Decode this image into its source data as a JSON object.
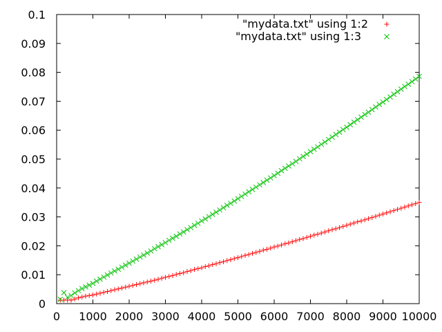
{
  "chart_data": {
    "type": "scatter",
    "title": "",
    "xlabel": "",
    "ylabel": "",
    "xlim": [
      0,
      10000
    ],
    "ylim": [
      0,
      0.1
    ],
    "x_ticks": [
      0,
      1000,
      2000,
      3000,
      4000,
      5000,
      6000,
      7000,
      8000,
      9000,
      10000
    ],
    "x_tick_labels": [
      "0",
      "1000",
      "2000",
      "3000",
      "4000",
      "5000",
      "6000",
      "7000",
      "8000",
      "9000",
      "10000"
    ],
    "y_ticks": [
      0,
      0.01,
      0.02,
      0.03,
      0.04,
      0.05,
      0.06,
      0.07,
      0.08,
      0.09,
      0.1
    ],
    "y_tick_labels": [
      "0",
      "0.01",
      "0.02",
      "0.03",
      "0.04",
      "0.05",
      "0.06",
      "0.07",
      "0.08",
      "0.09",
      "0.1"
    ],
    "grid": false,
    "legend_position": "top-right",
    "x": [
      100,
      200,
      300,
      400,
      500,
      600,
      700,
      800,
      900,
      1000,
      1100,
      1200,
      1300,
      1400,
      1500,
      1600,
      1700,
      1800,
      1900,
      2000,
      2100,
      2200,
      2300,
      2400,
      2500,
      2600,
      2700,
      2800,
      2900,
      3000,
      3100,
      3200,
      3300,
      3400,
      3500,
      3600,
      3700,
      3800,
      3900,
      4000,
      4100,
      4200,
      4300,
      4400,
      4500,
      4600,
      4700,
      4800,
      4900,
      5000,
      5100,
      5200,
      5300,
      5400,
      5500,
      5600,
      5700,
      5800,
      5900,
      6000,
      6100,
      6200,
      6300,
      6400,
      6500,
      6600,
      6700,
      6800,
      6900,
      7000,
      7100,
      7200,
      7300,
      7400,
      7500,
      7600,
      7700,
      7800,
      7900,
      8000,
      8100,
      8200,
      8300,
      8400,
      8500,
      8600,
      8700,
      8800,
      8900,
      9000,
      9100,
      9200,
      9300,
      9400,
      9500,
      9600,
      9700,
      9800,
      9900,
      10000
    ],
    "series": [
      {
        "name": "\"mydata.txt\" using 1:2",
        "marker": "plus",
        "color": "#ff0000",
        "values": [
          0.0012,
          0.0012,
          0.0012,
          0.0012,
          0.0016,
          0.002,
          0.0023,
          0.0026,
          0.0028,
          0.003,
          0.0033,
          0.0036,
          0.0039,
          0.0042,
          0.0045,
          0.0048,
          0.0051,
          0.0054,
          0.0057,
          0.006,
          0.0063,
          0.0066,
          0.0069,
          0.0072,
          0.0075,
          0.0078,
          0.0081,
          0.0084,
          0.0088,
          0.0091,
          0.0094,
          0.0097,
          0.0101,
          0.0104,
          0.0107,
          0.0111,
          0.0114,
          0.0118,
          0.0121,
          0.0124,
          0.0128,
          0.0131,
          0.0135,
          0.0138,
          0.0142,
          0.0145,
          0.0149,
          0.0152,
          0.0156,
          0.0159,
          0.0163,
          0.0167,
          0.017,
          0.0174,
          0.0177,
          0.0181,
          0.0185,
          0.0188,
          0.0192,
          0.0196,
          0.0199,
          0.0203,
          0.0207,
          0.021,
          0.0214,
          0.0218,
          0.0222,
          0.0225,
          0.0229,
          0.0233,
          0.0237,
          0.024,
          0.0244,
          0.0248,
          0.0252,
          0.0256,
          0.0259,
          0.0263,
          0.0267,
          0.0271,
          0.0275,
          0.0279,
          0.0283,
          0.0286,
          0.029,
          0.0294,
          0.0298,
          0.0302,
          0.0306,
          0.031,
          0.0314,
          0.0318,
          0.0322,
          0.0326,
          0.033,
          0.0334,
          0.0338,
          0.0342,
          0.0346,
          0.035
        ]
      },
      {
        "name": "\"mydata.txt\" using 1:3",
        "marker": "cross",
        "color": "#00c000",
        "values": [
          0.0015,
          0.0038,
          0.0022,
          0.0028,
          0.0037,
          0.0045,
          0.0052,
          0.0058,
          0.0064,
          0.007,
          0.0078,
          0.0085,
          0.0092,
          0.0099,
          0.0106,
          0.0113,
          0.0119,
          0.0126,
          0.0133,
          0.014,
          0.0147,
          0.0154,
          0.0161,
          0.0168,
          0.0175,
          0.0182,
          0.019,
          0.0197,
          0.0204,
          0.0211,
          0.0219,
          0.0226,
          0.0233,
          0.0241,
          0.0248,
          0.0256,
          0.0263,
          0.0271,
          0.0278,
          0.0286,
          0.0293,
          0.0301,
          0.0309,
          0.0316,
          0.0324,
          0.0332,
          0.034,
          0.0347,
          0.0355,
          0.0363,
          0.0371,
          0.0379,
          0.0387,
          0.0395,
          0.0403,
          0.0411,
          0.0419,
          0.0427,
          0.0435,
          0.0443,
          0.0451,
          0.046,
          0.0468,
          0.0476,
          0.0484,
          0.0492,
          0.0501,
          0.0509,
          0.0517,
          0.0526,
          0.0534,
          0.0542,
          0.0551,
          0.0559,
          0.0568,
          0.0576,
          0.0585,
          0.0593,
          0.0602,
          0.061,
          0.0619,
          0.0628,
          0.0636,
          0.0645,
          0.0654,
          0.0662,
          0.0671,
          0.068,
          0.0689,
          0.0697,
          0.0706,
          0.0715,
          0.0724,
          0.0733,
          0.0742,
          0.0751,
          0.0759,
          0.0768,
          0.0777,
          0.0786
        ]
      }
    ]
  }
}
